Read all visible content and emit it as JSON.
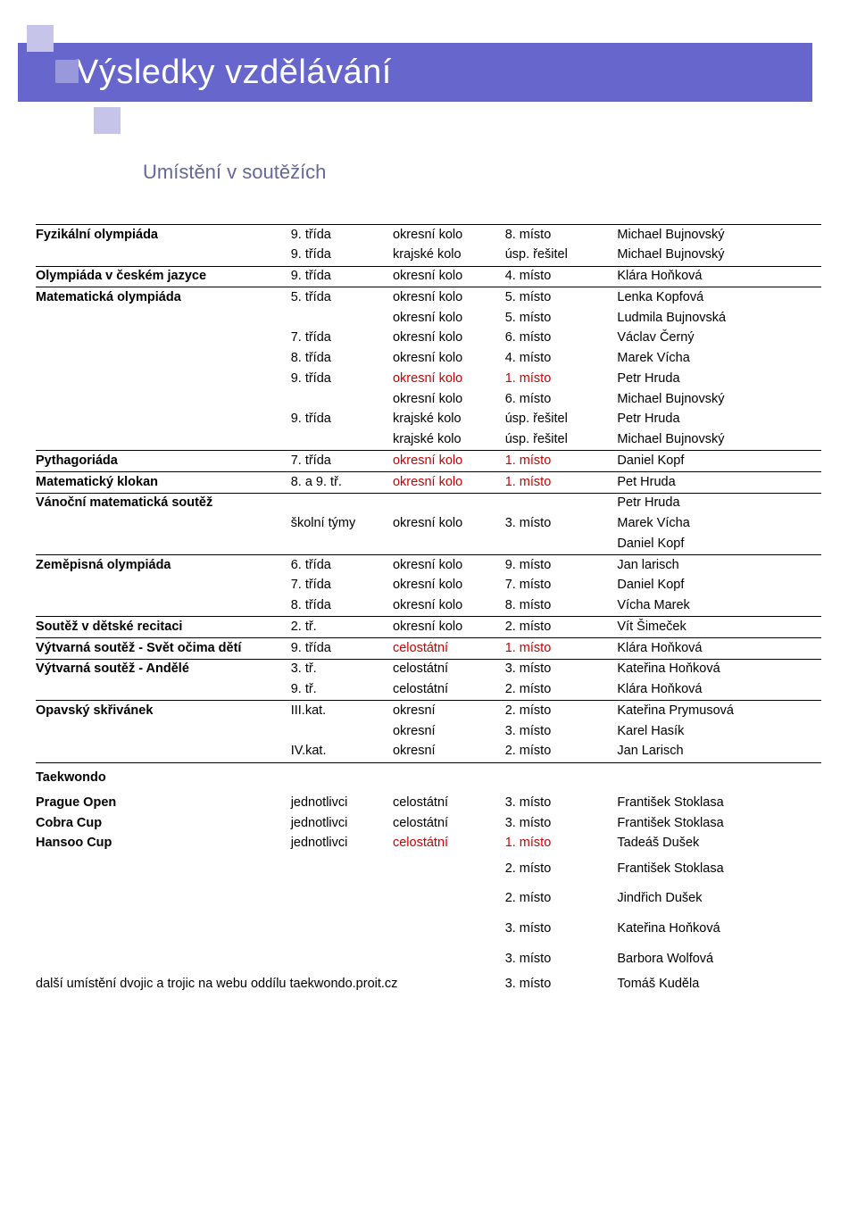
{
  "title": "Výsledky vzdělávání",
  "subtitle": "Umístění v soutěžích",
  "colors": {
    "band": "#6666cc",
    "squareLight": "#c6c5e9",
    "squareMid": "#9898db",
    "subtitle": "#666699",
    "red": "#cc0000"
  },
  "footer_note": "další umístění dvojic a trojic na webu oddílu taekwondo.proit.cz",
  "footer_place": "3. místo",
  "footer_name": "Tomáš Kuděla",
  "rows": [
    {
      "comp": "Fyzikální olympiáda",
      "grade": "9. třída",
      "level": "okresní kolo",
      "place": "8. místo",
      "name": "Michael Bujnovský",
      "compBold": true,
      "border": true
    },
    {
      "comp": "",
      "grade": "9. třída",
      "level": "krajské kolo",
      "place": "úsp. řešitel",
      "name": "Michael Bujnovský"
    },
    {
      "comp": "Olympiáda v českém jazyce",
      "grade": "9. třída",
      "level": "okresní kolo",
      "place": "4. místo",
      "name": "Klára Hoňková",
      "compBold": true,
      "border": true
    },
    {
      "comp": "Matematická olympiáda",
      "grade": "5. třída",
      "level": "okresní kolo",
      "place": "5. místo",
      "name": "Lenka Kopfová",
      "compBold": true,
      "border": true
    },
    {
      "comp": "",
      "grade": "",
      "level": "okresní kolo",
      "place": "5. místo",
      "name": "Ludmila Bujnovská"
    },
    {
      "comp": "",
      "grade": "7. třída",
      "level": "okresní kolo",
      "place": "6. místo",
      "name": "Václav Černý"
    },
    {
      "comp": "",
      "grade": "8. třída",
      "level": "okresní kolo",
      "place": "4. místo",
      "name": "Marek Vícha"
    },
    {
      "comp": "",
      "grade": "9. třída",
      "level": "okresní kolo",
      "place": "1. místo",
      "name": "Petr Hruda",
      "levelRed": true,
      "placeRed": true
    },
    {
      "comp": "",
      "grade": "",
      "level": "okresní kolo",
      "place": "6. místo",
      "name": "Michael Bujnovský"
    },
    {
      "comp": "",
      "grade": "9. třída",
      "level": "krajské kolo",
      "place": "úsp. řešitel",
      "name": "Petr Hruda"
    },
    {
      "comp": "",
      "grade": "",
      "level": "krajské kolo",
      "place": "úsp. řešitel",
      "name": "Michael Bujnovský"
    },
    {
      "comp": "Pythagoriáda",
      "grade": "7. třída",
      "level": "okresní kolo",
      "place": "1. místo",
      "name": "Daniel Kopf",
      "compBold": true,
      "border": true,
      "levelRed": true,
      "placeRed": true
    },
    {
      "comp": "Matematický klokan",
      "grade": "8. a 9. tř.",
      "level": "okresní kolo",
      "place": "1. místo",
      "name": "Pet Hruda",
      "compBold": true,
      "border": true,
      "levelRed": true,
      "placeRed": true
    },
    {
      "comp": "Vánoční matematická soutěž",
      "grade": "",
      "level": "",
      "place": "",
      "name": "Petr Hruda",
      "compBold": true,
      "border": true
    },
    {
      "comp": "",
      "grade": "školní týmy",
      "level": "okresní kolo",
      "place": "3. místo",
      "name": "Marek Vícha"
    },
    {
      "comp": "",
      "grade": "",
      "level": "",
      "place": "",
      "name": "Daniel Kopf"
    },
    {
      "comp": "Zeměpisná olympiáda",
      "grade": "6. třída",
      "level": "okresní kolo",
      "place": "9. místo",
      "name": "Jan larisch",
      "compBold": true,
      "border": true
    },
    {
      "comp": "",
      "grade": "7. třída",
      "level": "okresní kolo",
      "place": "7. místo",
      "name": "Daniel Kopf"
    },
    {
      "comp": "",
      "grade": "8. třída",
      "level": "okresní kolo",
      "place": "8. místo",
      "name": "Vícha Marek"
    },
    {
      "comp": "Soutěž v dětské recitaci",
      "grade": "2. tř.",
      "level": "okresní kolo",
      "place": "2. místo",
      "name": "Vít Šimeček",
      "compBold": true,
      "border": true
    },
    {
      "comp": "Výtvarná soutěž - Svět očima dětí",
      "grade": "9. třída",
      "level": "celostátní",
      "place": "1. místo",
      "name": "Klára Hoňková",
      "compBold": true,
      "border": true,
      "levelRed": true,
      "placeRed": true
    },
    {
      "comp": "Výtvarná soutěž - Andělé",
      "grade": "3. tř.",
      "level": "celostátní",
      "place": "3. místo",
      "name": "Kateřina Hoňková",
      "compBold": true,
      "border": true
    },
    {
      "comp": "",
      "grade": "9. tř.",
      "level": "celostátní",
      "place": "2. místo",
      "name": "Klára Hoňková"
    },
    {
      "comp": "Opavský skřivánek",
      "grade": "III.kat.",
      "level": "okresní",
      "place": "2. místo",
      "name": "Kateřina Prymusová",
      "compBold": true,
      "border": true
    },
    {
      "comp": "",
      "grade": "",
      "level": "okresní",
      "place": "3. místo",
      "name": "Karel Hasík"
    },
    {
      "comp": "",
      "grade": "IV.kat.",
      "level": "okresní",
      "place": "2. místo",
      "name": "Jan Larisch"
    },
    {
      "comp": "Taekwondo",
      "grade": "",
      "level": "",
      "place": "",
      "name": "",
      "compBold": true,
      "border": true,
      "spacer": true
    },
    {
      "comp": "Prague Open",
      "grade": "jednotlivci",
      "level": "celostátní",
      "place": "3. místo",
      "name": "František Stoklasa",
      "compBold": true
    },
    {
      "comp": "Cobra Cup",
      "grade": "jednotlivci",
      "level": "celostátní",
      "place": "3. místo",
      "name": "František Stoklasa",
      "compBold": true
    },
    {
      "comp": "Hansoo Cup",
      "grade": "jednotlivci",
      "level": "celostátní",
      "place": "1. místo",
      "name": "Tadeáš Dušek",
      "compBold": true,
      "levelRed": true,
      "placeRed": true
    },
    {
      "comp": "",
      "grade": "",
      "level": "",
      "place": "2. místo",
      "name": "František Stoklasa",
      "spacer": true
    },
    {
      "comp": "",
      "grade": "",
      "level": "",
      "place": "2. místo",
      "name": "Jindřich Dušek",
      "spacer": true
    },
    {
      "comp": "",
      "grade": "",
      "level": "",
      "place": "3. místo",
      "name": "Kateřina Hoňková",
      "spacer": true
    },
    {
      "comp": "",
      "grade": "",
      "level": "",
      "place": "3. místo",
      "name": "Barbora Wolfová",
      "spacer": true
    }
  ]
}
